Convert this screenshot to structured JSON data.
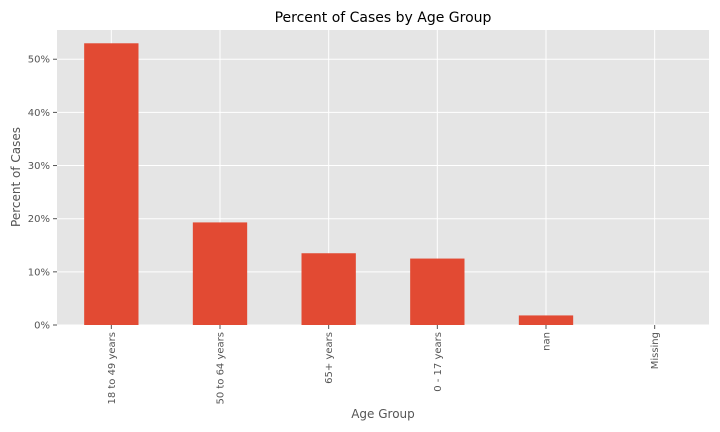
{
  "chart_data": {
    "type": "bar",
    "title": "Percent of Cases by Age Group",
    "xlabel": "Age Group",
    "ylabel": "Percent of Cases",
    "categories": [
      "18 to 49 years",
      "50 to 64 years",
      "65+ years",
      "0 - 17 years",
      "nan",
      "Missing"
    ],
    "values": [
      53.0,
      19.3,
      13.5,
      12.5,
      1.8,
      0.0
    ],
    "ylim": [
      0,
      55.5
    ],
    "yticks": [
      0,
      10,
      20,
      30,
      40,
      50
    ],
    "ytick_labels": [
      "0%",
      "10%",
      "20%",
      "30%",
      "40%",
      "50%"
    ],
    "grid": true,
    "bar_color": "#E24A33",
    "background_color": "#E5E5E5",
    "grid_color": "#FFFFFF"
  }
}
